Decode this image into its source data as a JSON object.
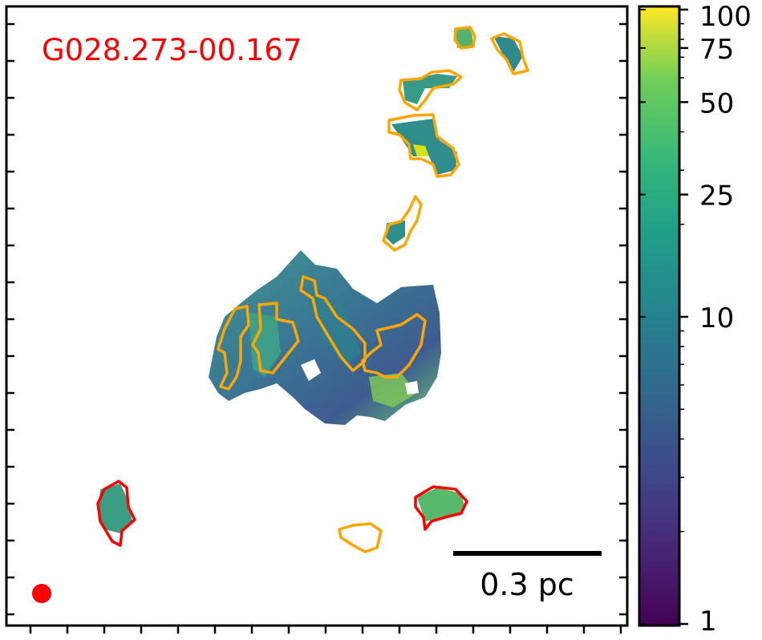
{
  "field_name": "G028.273-00.167",
  "scalebar_label": "0.3 pc",
  "colorbar": {
    "scale": "log",
    "range": [
      1,
      100
    ],
    "ticks": [
      {
        "value": 100,
        "label": "100"
      },
      {
        "value": 75,
        "label": "75"
      },
      {
        "value": 50,
        "label": "50"
      },
      {
        "value": 25,
        "label": "25"
      },
      {
        "value": 10,
        "label": "10"
      },
      {
        "value": 1,
        "label": "1"
      }
    ],
    "colormap": "viridis"
  },
  "colors": {
    "label_red": "#ff0000",
    "contour_orange": "#ffa500",
    "contour_red": "#ff0000",
    "frame": "#000000"
  }
}
